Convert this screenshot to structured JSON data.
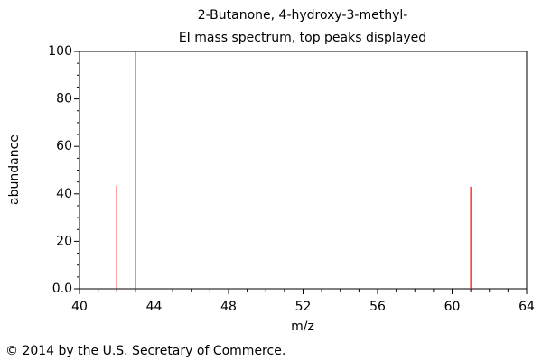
{
  "chart_data": {
    "type": "bar",
    "title": "2-Butanone, 4-hydroxy-3-methyl-",
    "subtitle": "EI mass spectrum, top peaks displayed",
    "x_label": "m/z",
    "y_label": "abundance",
    "x": [
      42,
      43,
      61
    ],
    "values": [
      43.5,
      100,
      43
    ],
    "color": "#ff0000",
    "xlim": [
      40,
      64
    ],
    "xticks": [
      40,
      44,
      48,
      52,
      56,
      60,
      64
    ],
    "ylim": [
      0,
      100
    ],
    "yticks": [
      {
        "value": 0,
        "label": "0.0"
      },
      20,
      40,
      60,
      80,
      100
    ],
    "footer": "© 2014 by the U.S. Secretary of Commerce."
  }
}
